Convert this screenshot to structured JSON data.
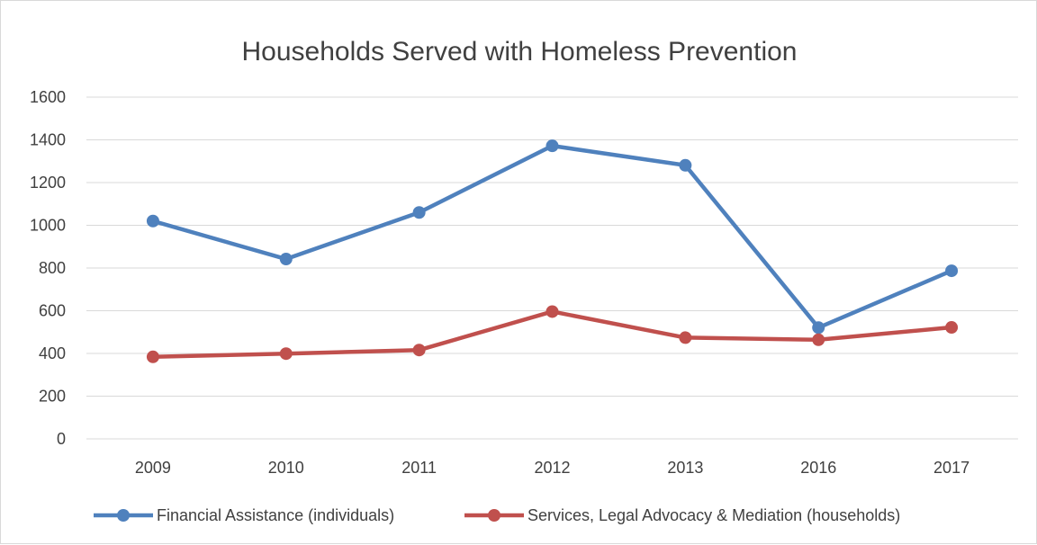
{
  "chart_data": {
    "type": "line",
    "title": "Households Served with Homeless Prevention",
    "xlabel": "",
    "ylabel": "",
    "categories": [
      "2009",
      "2010",
      "2011",
      "2012",
      "2013",
      "2016",
      "2017"
    ],
    "y_ticks": [
      "0",
      "200",
      "400",
      "600",
      "800",
      "1000",
      "1200",
      "1400",
      "1600"
    ],
    "ylim": [
      0,
      1600
    ],
    "grid": true,
    "legend_position": "bottom",
    "series": [
      {
        "name": "Financial Assistance (individuals)",
        "color": "#4f81bd",
        "values": [
          1020,
          842,
          1060,
          1372,
          1281,
          521,
          787
        ]
      },
      {
        "name": "Services, Legal Advocacy & Mediation (households)",
        "color": "#c0504d",
        "values": [
          384,
          399,
          416,
          596,
          474,
          464,
          522
        ]
      }
    ]
  }
}
